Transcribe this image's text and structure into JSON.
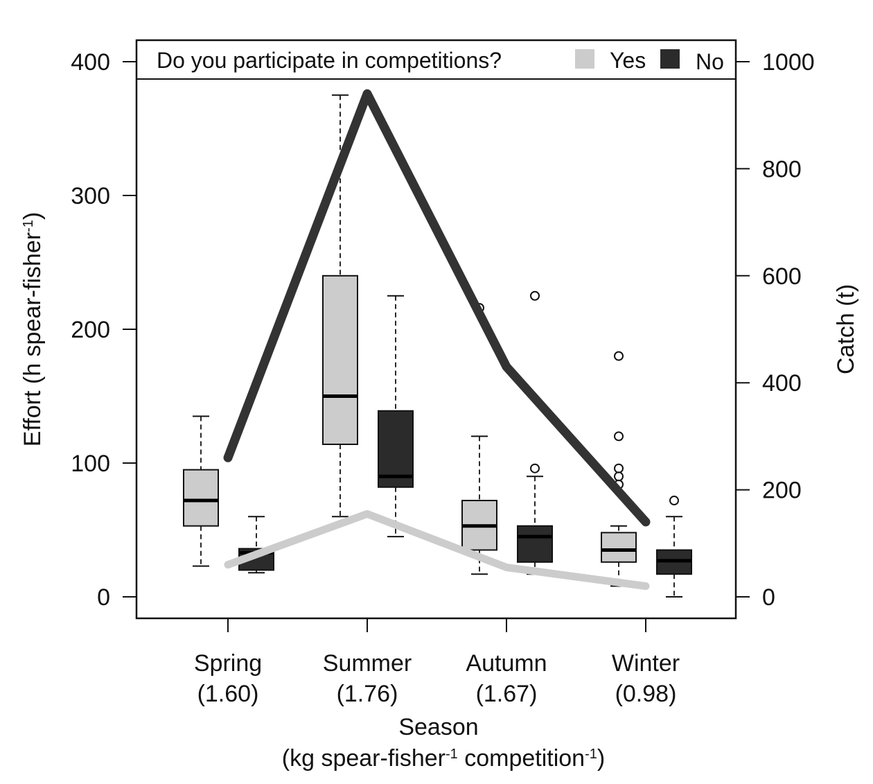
{
  "chart_data": {
    "type": "box",
    "title": "",
    "legend": {
      "title": "Do you participate in competitions?",
      "placement": "top",
      "entries": [
        {
          "key": "yes",
          "label": "Yes",
          "color": "#cccccc"
        },
        {
          "key": "no",
          "label": "No",
          "color": "#2b2b2b"
        }
      ]
    },
    "xlabel": "Season",
    "xlabel_sub": {
      "a": "(kg spear-fisher",
      "b": "-1",
      "c": " competition",
      "d": "-1",
      "e": ")"
    },
    "ylabel_left": {
      "a": "Effort (h spear-fisher",
      "b": "-1",
      "c": ")"
    },
    "ylabel_right": "Catch (t)",
    "categories": [
      {
        "name": "Spring",
        "cpue": "(1.60)"
      },
      {
        "name": "Summer",
        "cpue": "(1.76)"
      },
      {
        "name": "Autumn",
        "cpue": "(1.67)"
      },
      {
        "name": "Winter",
        "cpue": "(0.98)"
      }
    ],
    "left_axis": {
      "range": [
        -16,
        400
      ],
      "ticks": [
        "0",
        "100",
        "200",
        "300",
        "400"
      ],
      "tick_values": [
        0,
        100,
        200,
        300,
        400
      ]
    },
    "right_axis": {
      "range": [
        -40,
        1000
      ],
      "ticks": [
        "0",
        "200",
        "400",
        "600",
        "800",
        "1000"
      ],
      "tick_values": [
        0,
        200,
        400,
        600,
        800,
        1000
      ]
    },
    "boxes": [
      {
        "season": "Spring",
        "group": "yes",
        "min": 23,
        "q1": 53,
        "median": 72,
        "q3": 95,
        "max": 135,
        "outliers": []
      },
      {
        "season": "Spring",
        "group": "no",
        "min": 18,
        "q1": 20,
        "median": 33,
        "q3": 36,
        "max": 60,
        "outliers": []
      },
      {
        "season": "Summer",
        "group": "yes",
        "min": 60,
        "q1": 114,
        "median": 150,
        "q3": 240,
        "max": 375,
        "outliers": []
      },
      {
        "season": "Summer",
        "group": "no",
        "min": 45,
        "q1": 82,
        "median": 90,
        "q3": 139,
        "max": 225,
        "outliers": []
      },
      {
        "season": "Autumn",
        "group": "yes",
        "min": 17,
        "q1": 35,
        "median": 53,
        "q3": 72,
        "max": 120,
        "outliers": [
          216
        ]
      },
      {
        "season": "Autumn",
        "group": "no",
        "min": 17,
        "q1": 26,
        "median": 45,
        "q3": 53,
        "max": 90,
        "outliers": [
          96,
          225
        ]
      },
      {
        "season": "Winter",
        "group": "yes",
        "min": 8,
        "q1": 26,
        "median": 35,
        "q3": 48,
        "max": 53,
        "outliers": [
          84,
          90,
          96,
          120,
          180
        ]
      },
      {
        "season": "Winter",
        "group": "no",
        "min": 0,
        "q1": 17,
        "median": 27,
        "q3": 35,
        "max": 60,
        "outliers": [
          72
        ]
      }
    ],
    "catch_lines": [
      {
        "group": "no",
        "axis": "right",
        "values": [
          260,
          940,
          430,
          140
        ]
      },
      {
        "group": "yes",
        "axis": "right",
        "values": [
          60,
          155,
          55,
          20
        ]
      }
    ],
    "colors": {
      "yes": "#cccccc",
      "no": "#2b2b2b",
      "line_no": "#333333",
      "line_yes": "#cccccc"
    }
  }
}
